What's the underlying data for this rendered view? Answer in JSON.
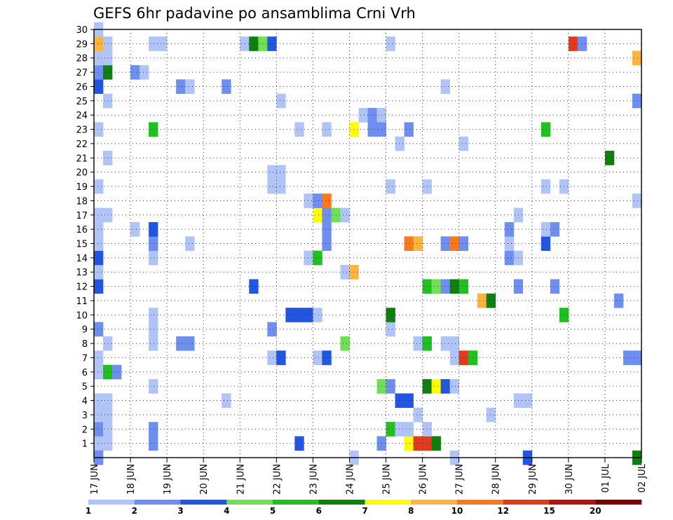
{
  "chart_data": {
    "type": "heatmap",
    "title": "GEFS 6hr padavine po ansamblima Crni Vrh",
    "xlabel": "",
    "ylabel": "",
    "x_tick_labels": [
      "17 JUN",
      "18 JUN",
      "19 JUN",
      "20 JUN",
      "21 JUN",
      "22 JUN",
      "23 JUN",
      "24 JUN",
      "25 JUN",
      "26 JUN",
      "27 JUN",
      "28 JUN",
      "29 JUN",
      "30 JUN",
      "01 JUL",
      "02 JUL"
    ],
    "y_tick_labels": [
      "1",
      "2",
      "3",
      "4",
      "5",
      "6",
      "7",
      "8",
      "9",
      "10",
      "11",
      "12",
      "13",
      "14",
      "15",
      "16",
      "17",
      "18",
      "19",
      "20",
      "21",
      "22",
      "23",
      "24",
      "25",
      "26",
      "27",
      "28",
      "29",
      "30"
    ],
    "xlim": [
      0,
      60
    ],
    "ylim": [
      0,
      30
    ],
    "grid": true,
    "levels": [
      "1",
      "2",
      "3",
      "4",
      "5",
      "6",
      "7",
      "8",
      "10",
      "12",
      "15",
      "20"
    ],
    "colors": [
      "#ffffff",
      "#b0c4f8",
      "#6e8ef0",
      "#2255e0",
      "#6fe055",
      "#1fc01f",
      "#0f7f0f",
      "#ffff00",
      "#ffb440",
      "#fa7a1a",
      "#e23a1a",
      "#b81010",
      "#780000"
    ],
    "cells": [
      [
        0,
        1,
        1
      ],
      [
        0,
        2,
        2
      ],
      [
        0,
        3,
        1
      ],
      [
        0,
        4,
        1
      ],
      [
        0,
        6,
        1
      ],
      [
        0,
        7,
        1
      ],
      [
        0,
        9,
        2
      ],
      [
        0,
        12,
        3
      ],
      [
        0,
        13,
        1
      ],
      [
        0,
        14,
        3
      ],
      [
        0,
        15,
        1
      ],
      [
        0,
        16,
        1
      ],
      [
        0,
        17,
        1
      ],
      [
        0,
        19,
        1
      ],
      [
        0,
        23,
        1
      ],
      [
        0,
        26,
        3
      ],
      [
        0,
        27,
        2
      ],
      [
        0,
        28,
        1
      ],
      [
        0,
        29,
        8
      ],
      [
        0,
        30,
        1
      ],
      [
        0,
        0,
        2
      ],
      [
        1,
        1,
        1
      ],
      [
        1,
        2,
        1
      ],
      [
        1,
        3,
        1
      ],
      [
        1,
        4,
        1
      ],
      [
        1,
        6,
        5
      ],
      [
        1,
        8,
        1
      ],
      [
        1,
        17,
        1
      ],
      [
        1,
        21,
        1
      ],
      [
        1,
        25,
        1
      ],
      [
        1,
        27,
        6
      ],
      [
        1,
        28,
        1
      ],
      [
        1,
        29,
        1
      ],
      [
        2,
        6,
        2
      ],
      [
        4,
        16,
        1
      ],
      [
        4,
        27,
        2
      ],
      [
        5,
        27,
        1
      ],
      [
        6,
        2,
        2
      ],
      [
        6,
        1,
        2
      ],
      [
        6,
        5,
        1
      ],
      [
        6,
        8,
        1
      ],
      [
        6,
        9,
        1
      ],
      [
        6,
        10,
        1
      ],
      [
        6,
        14,
        1
      ],
      [
        6,
        15,
        2
      ],
      [
        6,
        16,
        3
      ],
      [
        6,
        23,
        5
      ],
      [
        6,
        29,
        1
      ],
      [
        7,
        29,
        1
      ],
      [
        9,
        8,
        2
      ],
      [
        9,
        26,
        2
      ],
      [
        10,
        8,
        2
      ],
      [
        10,
        15,
        1
      ],
      [
        10,
        26,
        1
      ],
      [
        14,
        4,
        1
      ],
      [
        14,
        26,
        2
      ],
      [
        16,
        29,
        1
      ],
      [
        17,
        12,
        3
      ],
      [
        17,
        29,
        6
      ],
      [
        18,
        29,
        4
      ],
      [
        19,
        7,
        1
      ],
      [
        19,
        9,
        2
      ],
      [
        19,
        19,
        1
      ],
      [
        19,
        20,
        1
      ],
      [
        19,
        29,
        3
      ],
      [
        20,
        7,
        3
      ],
      [
        20,
        19,
        1
      ],
      [
        20,
        20,
        1
      ],
      [
        20,
        25,
        1
      ],
      [
        21,
        10,
        3
      ],
      [
        22,
        1,
        3
      ],
      [
        22,
        10,
        3
      ],
      [
        22,
        23,
        1
      ],
      [
        23,
        10,
        3
      ],
      [
        23,
        14,
        1
      ],
      [
        23,
        18,
        1
      ],
      [
        24,
        7,
        1
      ],
      [
        24,
        10,
        1
      ],
      [
        24,
        14,
        5
      ],
      [
        24,
        17,
        7
      ],
      [
        24,
        18,
        2
      ],
      [
        25,
        7,
        3
      ],
      [
        25,
        15,
        2
      ],
      [
        25,
        16,
        2
      ],
      [
        25,
        17,
        2
      ],
      [
        25,
        23,
        1
      ],
      [
        25,
        18,
        9
      ],
      [
        26,
        17,
        4
      ],
      [
        27,
        8,
        4
      ],
      [
        27,
        13,
        1
      ],
      [
        27,
        17,
        1
      ],
      [
        28,
        13,
        8
      ],
      [
        28,
        23,
        7
      ],
      [
        28,
        0,
        1
      ],
      [
        29,
        24,
        1
      ],
      [
        30,
        24,
        2
      ],
      [
        30,
        23,
        2
      ],
      [
        31,
        1,
        2
      ],
      [
        31,
        5,
        4
      ],
      [
        31,
        24,
        1
      ],
      [
        31,
        23,
        2
      ],
      [
        32,
        2,
        5
      ],
      [
        32,
        5,
        2
      ],
      [
        32,
        9,
        1
      ],
      [
        32,
        10,
        6
      ],
      [
        32,
        19,
        1
      ],
      [
        32,
        29,
        1
      ],
      [
        33,
        2,
        1
      ],
      [
        33,
        4,
        3
      ],
      [
        33,
        22,
        1
      ],
      [
        34,
        1,
        7
      ],
      [
        34,
        2,
        1
      ],
      [
        34,
        4,
        3
      ],
      [
        34,
        15,
        9
      ],
      [
        34,
        23,
        2
      ],
      [
        35,
        1,
        10
      ],
      [
        35,
        3,
        1
      ],
      [
        35,
        8,
        1
      ],
      [
        35,
        15,
        8
      ],
      [
        36,
        1,
        10
      ],
      [
        36,
        2,
        1
      ],
      [
        36,
        5,
        6
      ],
      [
        36,
        8,
        5
      ],
      [
        36,
        12,
        5
      ],
      [
        36,
        19,
        1
      ],
      [
        37,
        1,
        6
      ],
      [
        37,
        5,
        7
      ],
      [
        37,
        12,
        4
      ],
      [
        38,
        5,
        3
      ],
      [
        38,
        15,
        2
      ],
      [
        38,
        12,
        2
      ],
      [
        38,
        8,
        1
      ],
      [
        38,
        26,
        1
      ],
      [
        39,
        7,
        1
      ],
      [
        39,
        12,
        6
      ],
      [
        39,
        15,
        9
      ],
      [
        39,
        8,
        1
      ],
      [
        39,
        5,
        1
      ],
      [
        39,
        0,
        1
      ],
      [
        40,
        7,
        10
      ],
      [
        40,
        12,
        5
      ],
      [
        40,
        15,
        2
      ],
      [
        40,
        22,
        1
      ],
      [
        41,
        7,
        5
      ],
      [
        42,
        11,
        8
      ],
      [
        43,
        11,
        6
      ],
      [
        43,
        3,
        1
      ],
      [
        45,
        14,
        2
      ],
      [
        45,
        15,
        1
      ],
      [
        45,
        16,
        2
      ],
      [
        46,
        4,
        1
      ],
      [
        46,
        12,
        2
      ],
      [
        46,
        14,
        1
      ],
      [
        46,
        17,
        1
      ],
      [
        47,
        4,
        1
      ],
      [
        47,
        0,
        3
      ],
      [
        49,
        15,
        3
      ],
      [
        49,
        16,
        1
      ],
      [
        49,
        19,
        1
      ],
      [
        49,
        23,
        5
      ],
      [
        50,
        12,
        2
      ],
      [
        50,
        16,
        2
      ],
      [
        51,
        10,
        5
      ],
      [
        51,
        19,
        1
      ],
      [
        52,
        29,
        10
      ],
      [
        53,
        29,
        2
      ],
      [
        56,
        21,
        6
      ],
      [
        57,
        11,
        2
      ],
      [
        58,
        7,
        2
      ],
      [
        59,
        7,
        2
      ],
      [
        59,
        18,
        1
      ],
      [
        59,
        25,
        2
      ],
      [
        59,
        28,
        8
      ],
      [
        59,
        0,
        6
      ]
    ]
  }
}
